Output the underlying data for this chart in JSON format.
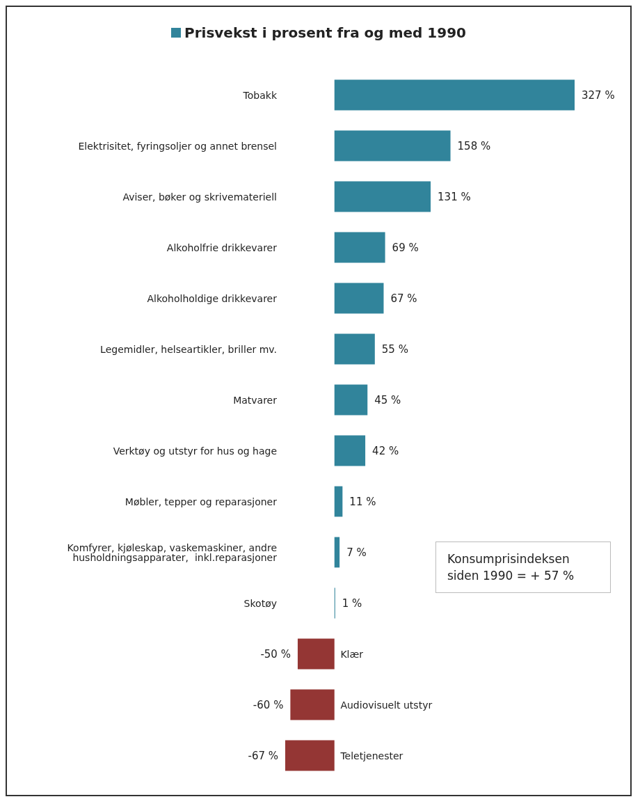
{
  "chart_data": {
    "type": "bar",
    "orientation": "horizontal",
    "categories": [
      "Tobakk",
      "Elektrisitet, fyringsoljer og annet brensel",
      "Aviser, bøker og skrivemateriell",
      "Alkoholfrie drikkevarer",
      "Alkoholholdige drikkevarer",
      "Legemidler, helseartikler, briller mv.",
      "Matvarer",
      "Verktøy og utstyr for hus og hage",
      "Møbler, tepper og reparasjoner",
      "Komfyrer, kjøleskap, vaskemaskiner, andre\nhusholdningsapparater,  inkl.reparasjoner",
      "Skotøy",
      "Klær",
      "Audiovisuelt utstyr",
      "Teletjenester"
    ],
    "series": [
      {
        "name": "Prisvekst i prosent fra og med 1990",
        "color": "#31849b",
        "colors": [
          "#31849b",
          "#31849b",
          "#31849b",
          "#31849b",
          "#31849b",
          "#31849b",
          "#31849b",
          "#31849b",
          "#31849b",
          "#31849b",
          "#31849b",
          "#943634",
          "#943634",
          "#943634"
        ],
        "values": [
          327,
          158,
          131,
          69,
          67,
          55,
          45,
          42,
          11,
          7,
          1,
          -50,
          -60,
          -67
        ],
        "value_labels": [
          "327 %",
          "158 %",
          "131 %",
          "69 %",
          "67 %",
          "55 %",
          "45 %",
          "42 %",
          "11 %",
          "7 %",
          "1 %",
          "-50 %",
          "-60 %",
          "-67 %"
        ]
      }
    ],
    "legend": "top",
    "annotations": [
      "Konsumprisindeksen\nsiden 1990 = + 57 %"
    ]
  }
}
